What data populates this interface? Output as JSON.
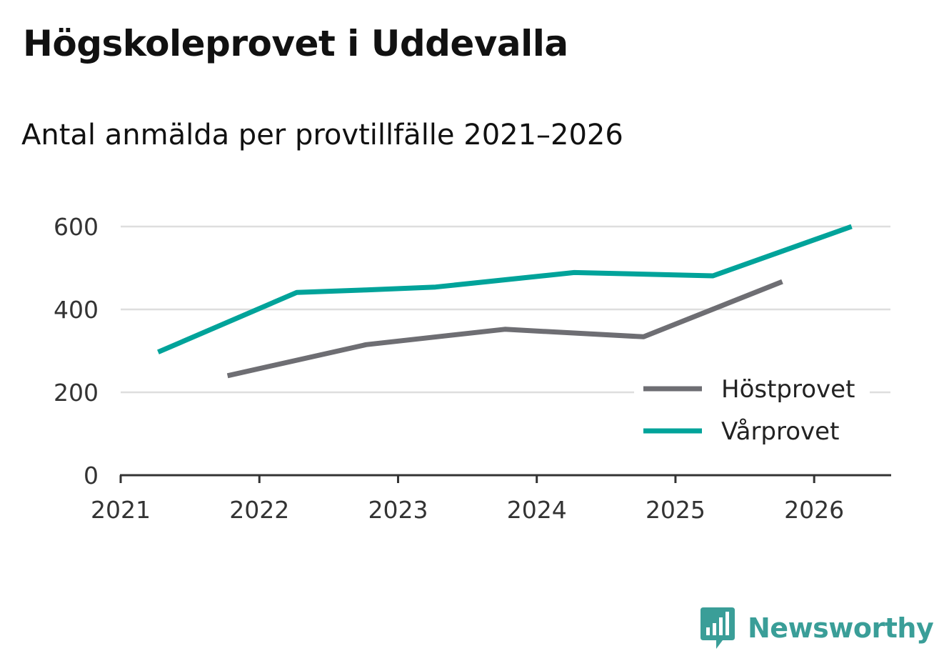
{
  "header": {
    "title": "Högskoleprovet i Uddevalla",
    "subtitle": "Antal anmälda per provtillfälle 2021–2026"
  },
  "chart_data": {
    "type": "line",
    "title": "Högskoleprovet i Uddevalla",
    "subtitle": "Antal anmälda per provtillfälle 2021–2026",
    "xlabel": "",
    "ylabel": "",
    "xlim": [
      2021,
      2026.55
    ],
    "ylim": [
      0,
      600
    ],
    "x_ticks": [
      "2021",
      "2022",
      "2023",
      "2024",
      "2025",
      "2026"
    ],
    "y_ticks": [
      "0",
      "200",
      "400",
      "600"
    ],
    "grid": true,
    "legend_position": "bottom-right",
    "series": [
      {
        "name": "Höstprovet",
        "color": "#6e6e73",
        "x": [
          2021.77,
          2022.77,
          2023.77,
          2024.77,
          2025.77
        ],
        "y": [
          240,
          315,
          352,
          334,
          467
        ]
      },
      {
        "name": "Vårprovet",
        "color": "#00a39a",
        "x": [
          2021.27,
          2022.27,
          2022.77,
          2023.27,
          2024.27,
          2025.27,
          2026.27
        ],
        "y": [
          297,
          441,
          447,
          454,
          489,
          481,
          600
        ]
      }
    ]
  },
  "brand": {
    "name": "Newsworthy",
    "logo_icon": "newsworthy-logo-icon",
    "color": "#3a9e98"
  }
}
